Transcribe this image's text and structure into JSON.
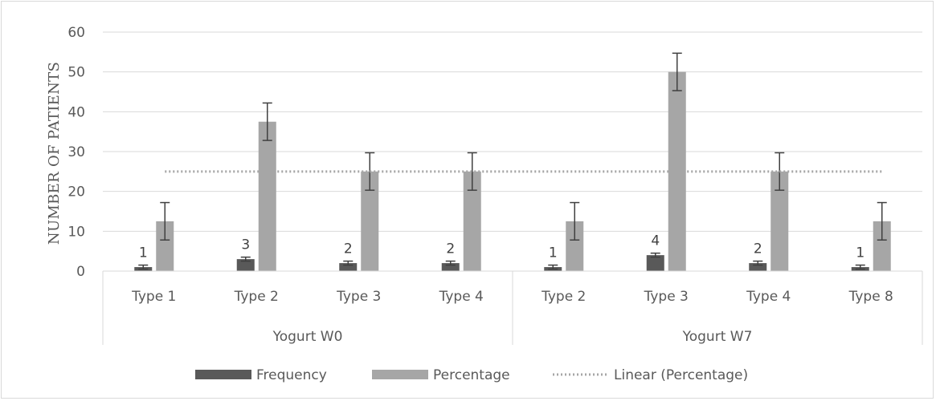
{
  "chart_data": {
    "type": "bar",
    "ylabel": "NUMBER OF PATIENTS",
    "ylim": [
      0,
      60
    ],
    "yticks": [
      0,
      10,
      20,
      30,
      40,
      50,
      60
    ],
    "grid": true,
    "groups": [
      {
        "label": "Yogurt W0",
        "categories": [
          "Type 1",
          "Type 2",
          "Type 3",
          "Type 4"
        ]
      },
      {
        "label": "Yogurt W7",
        "categories": [
          "Type 2",
          "Type 3",
          "Type 4",
          "Type 8"
        ]
      }
    ],
    "series": [
      {
        "name": "Frequency",
        "color": "#595959",
        "values": [
          1,
          3,
          2,
          2,
          1,
          4,
          2,
          1
        ],
        "error": 0.5,
        "data_labels": true
      },
      {
        "name": "Percentage",
        "color": "#a6a6a6",
        "values": [
          12.5,
          37.5,
          25,
          25,
          12.5,
          50,
          25,
          12.5
        ],
        "error": 4.7,
        "data_labels": false
      }
    ],
    "trendline": {
      "name": "Linear (Percentage)",
      "value": 25,
      "color": "#a6a6a6",
      "style": "dotted"
    },
    "legend_position": "bottom"
  }
}
